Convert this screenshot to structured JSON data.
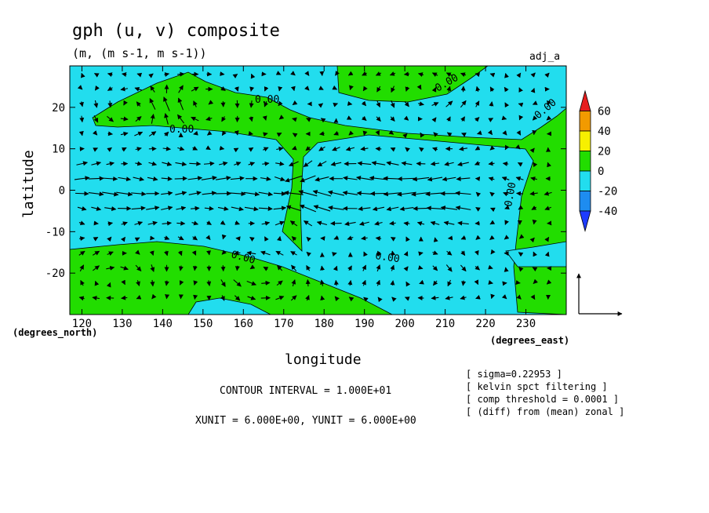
{
  "chart_data": {
    "type": "contour_vector",
    "title": "gph (u, v) composite",
    "subtitle": "(m, (m s-1, m s-1))",
    "tag": "adj_a",
    "xlabel": "longitude",
    "ylabel": "latitude",
    "xunit_label": "(degrees_east)",
    "yunit_label": "(degrees_north)",
    "xlim": [
      117,
      240
    ],
    "ylim": [
      -30,
      30
    ],
    "xticks": [
      120,
      130,
      140,
      150,
      160,
      170,
      180,
      190,
      200,
      210,
      220,
      230
    ],
    "yticks": [
      20,
      10,
      0,
      -10,
      -20
    ],
    "contour_labels": [
      "0.00",
      "0.00",
      "0.00",
      "0.00",
      "0.00",
      "0.00",
      "0.00"
    ],
    "colorbar": {
      "levels": [
        60,
        40,
        20,
        0,
        -20,
        -40
      ],
      "colors": [
        "#e61e1e",
        "#f29a00",
        "#f7f000",
        "#22dd00",
        "#22ddee",
        "#1e8cf0",
        "#1e3cff"
      ]
    },
    "info": {
      "contour_interval": "CONTOUR INTERVAL = 1.000E+01",
      "units": "XUNIT = 6.000E+00, YUNIT = 6.000E+00"
    },
    "notes": [
      "[ sigma=0.22953 ]",
      "[ kelvin spct filtering ]",
      "[ comp threshold = 0.0001 ]",
      "[ (diff) from (mean) zonal ]"
    ]
  }
}
